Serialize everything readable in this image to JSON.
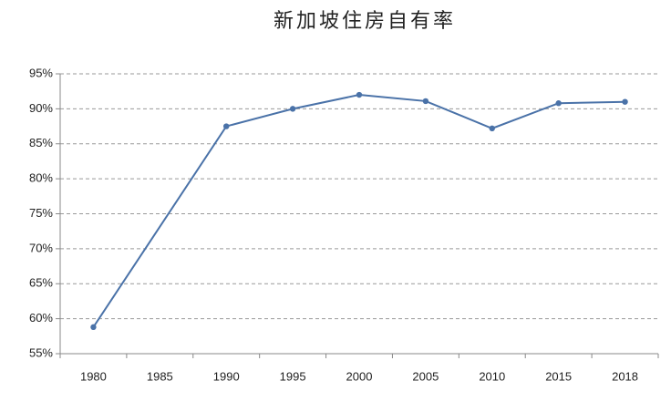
{
  "chart_data": {
    "type": "line",
    "title": "新加坡住房自有率",
    "categories": [
      "1980",
      "1985",
      "1990",
      "1995",
      "2000",
      "2005",
      "2010",
      "2015",
      "2018"
    ],
    "x": [
      "1980",
      "1990",
      "1995",
      "2000",
      "2005",
      "2010",
      "2015",
      "2018"
    ],
    "series": [
      {
        "color": "#4a72a8",
        "values": [
          58.8,
          87.5,
          90,
          92,
          91.1,
          87.2,
          90.8,
          91
        ]
      }
    ],
    "ylim": [
      55,
      95
    ],
    "yticks": [
      {
        "value": 55,
        "label": "55%"
      },
      {
        "value": 60,
        "label": "60%"
      },
      {
        "value": 65,
        "label": "65%"
      },
      {
        "value": 70,
        "label": "70%"
      },
      {
        "value": 75,
        "label": "75%"
      },
      {
        "value": 80,
        "label": "80%"
      },
      {
        "value": 85,
        "label": "85%"
      },
      {
        "value": 90,
        "label": "90%"
      },
      {
        "value": 95,
        "label": "95%"
      }
    ],
    "grid": true
  }
}
